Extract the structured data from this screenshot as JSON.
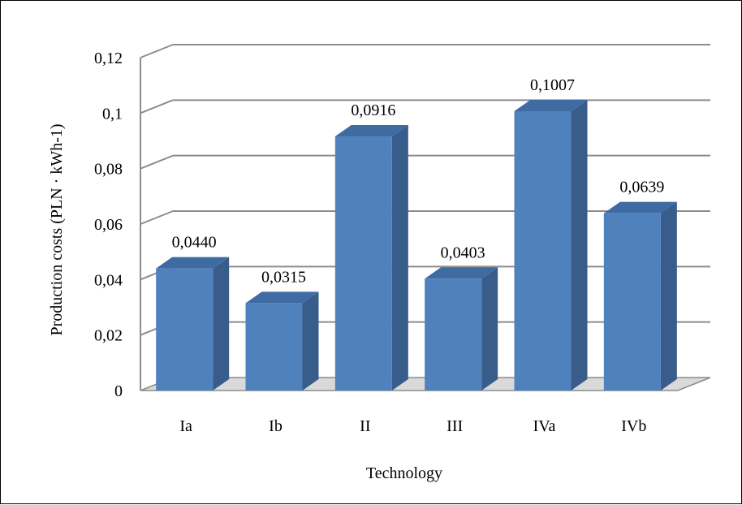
{
  "chart_data": {
    "type": "bar",
    "categories": [
      "Ia",
      "Ib",
      "II",
      "III",
      "IVa",
      "IVb"
    ],
    "values": [
      0.044,
      0.0315,
      0.0916,
      0.0403,
      0.1007,
      0.0639
    ],
    "data_labels": [
      "0,0440",
      "0,0315",
      "0,0916",
      "0,0403",
      "0,1007",
      "0,0639"
    ],
    "title": "",
    "xlabel": "Technology",
    "ylabel": "Production costs (PLN · kWh-1)",
    "ylim": [
      0,
      0.12
    ],
    "yticks": [
      0,
      0.02,
      0.04,
      0.06,
      0.08,
      0.1,
      0.12
    ],
    "ytick_labels": [
      "0",
      "0,02",
      "0,04",
      "0,06",
      "0,08",
      "0,1",
      "0,12"
    ],
    "grid": true,
    "legend": "none",
    "style": "3d-column",
    "colors": {
      "bar_front": "#4f81bd",
      "bar_side": "#385d8a",
      "bar_top": "#3f6ba3",
      "grid": "#8c8c8c",
      "floor": "#d9d9d9"
    }
  }
}
